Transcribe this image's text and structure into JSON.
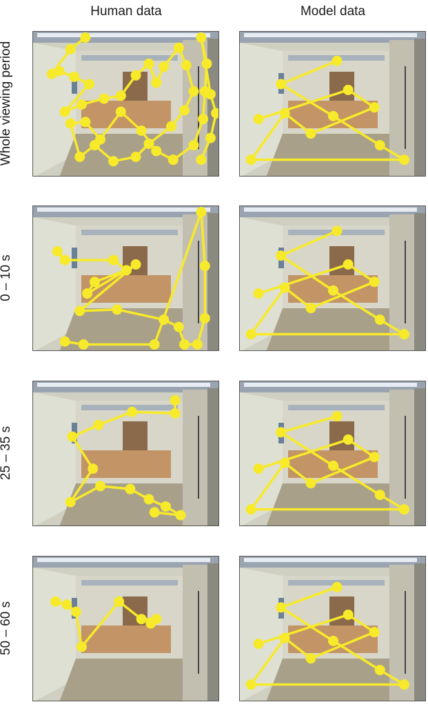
{
  "columns": [
    "Human data",
    "Model data"
  ],
  "rows": [
    "Whole viewing period",
    "0 – 10 s",
    "25 – 35 s",
    "50 – 60 s"
  ],
  "colors": {
    "scanpath": "#f7ea2a",
    "wall": "#dfe0d4",
    "floor": "#a9a08a",
    "door": "#8a6a4a",
    "desk": "#c29466"
  },
  "panels": [
    {
      "row": 0,
      "col": 0,
      "fixations": [
        [
          0.28,
          0.04
        ],
        [
          0.2,
          0.12
        ],
        [
          0.1,
          0.29
        ],
        [
          0.14,
          0.27
        ],
        [
          0.22,
          0.31
        ],
        [
          0.3,
          0.36
        ],
        [
          0.17,
          0.55
        ],
        [
          0.26,
          0.5
        ],
        [
          0.38,
          0.46
        ],
        [
          0.47,
          0.44
        ],
        [
          0.55,
          0.3
        ],
        [
          0.62,
          0.22
        ],
        [
          0.66,
          0.35
        ],
        [
          0.7,
          0.24
        ],
        [
          0.78,
          0.11
        ],
        [
          0.82,
          0.23
        ],
        [
          0.86,
          0.41
        ],
        [
          0.81,
          0.54
        ],
        [
          0.74,
          0.65
        ],
        [
          0.62,
          0.77
        ],
        [
          0.55,
          0.86
        ],
        [
          0.43,
          0.89
        ],
        [
          0.33,
          0.78
        ],
        [
          0.25,
          0.86
        ],
        [
          0.2,
          0.63
        ],
        [
          0.28,
          0.62
        ],
        [
          0.36,
          0.74
        ],
        [
          0.47,
          0.55
        ],
        [
          0.58,
          0.68
        ],
        [
          0.66,
          0.82
        ],
        [
          0.75,
          0.88
        ],
        [
          0.86,
          0.78
        ],
        [
          0.91,
          0.6
        ],
        [
          0.92,
          0.41
        ],
        [
          0.93,
          0.22
        ],
        [
          0.9,
          0.04
        ],
        [
          0.95,
          0.43
        ],
        [
          0.98,
          0.56
        ],
        [
          0.95,
          0.73
        ],
        [
          0.9,
          0.88
        ]
      ]
    },
    {
      "row": 0,
      "col": 1,
      "fixations": [
        [
          0.52,
          0.2
        ],
        [
          0.22,
          0.36
        ],
        [
          0.5,
          0.58
        ],
        [
          0.75,
          0.78
        ],
        [
          0.88,
          0.88
        ],
        [
          0.06,
          0.88
        ],
        [
          0.24,
          0.56
        ],
        [
          0.38,
          0.7
        ],
        [
          0.72,
          0.52
        ],
        [
          0.58,
          0.4
        ],
        [
          0.1,
          0.6
        ]
      ]
    },
    {
      "row": 1,
      "col": 0,
      "fixations": [
        [
          0.13,
          0.31
        ],
        [
          0.17,
          0.37
        ],
        [
          0.43,
          0.37
        ],
        [
          0.5,
          0.44
        ],
        [
          0.33,
          0.52
        ],
        [
          0.29,
          0.6
        ],
        [
          0.55,
          0.4
        ],
        [
          0.25,
          0.72
        ],
        [
          0.45,
          0.71
        ],
        [
          0.7,
          0.78
        ],
        [
          0.78,
          0.83
        ],
        [
          0.81,
          0.95
        ],
        [
          0.88,
          0.95
        ],
        [
          0.92,
          0.77
        ],
        [
          0.92,
          0.41
        ],
        [
          0.9,
          0.04
        ],
        [
          0.65,
          0.95
        ],
        [
          0.27,
          0.95
        ],
        [
          0.17,
          0.93
        ]
      ]
    },
    {
      "row": 1,
      "col": 1,
      "fixations": [
        [
          0.52,
          0.17
        ],
        [
          0.22,
          0.34
        ],
        [
          0.5,
          0.58
        ],
        [
          0.75,
          0.78
        ],
        [
          0.88,
          0.88
        ],
        [
          0.06,
          0.88
        ],
        [
          0.24,
          0.56
        ],
        [
          0.38,
          0.7
        ],
        [
          0.72,
          0.52
        ],
        [
          0.58,
          0.4
        ],
        [
          0.1,
          0.6
        ]
      ]
    },
    {
      "row": 2,
      "col": 0,
      "fixations": [
        [
          0.76,
          0.13
        ],
        [
          0.76,
          0.22
        ],
        [
          0.53,
          0.21
        ],
        [
          0.35,
          0.3
        ],
        [
          0.21,
          0.38
        ],
        [
          0.32,
          0.6
        ],
        [
          0.2,
          0.83
        ],
        [
          0.36,
          0.72
        ],
        [
          0.52,
          0.74
        ],
        [
          0.62,
          0.81
        ],
        [
          0.71,
          0.86
        ],
        [
          0.79,
          0.92
        ],
        [
          0.65,
          0.9
        ]
      ]
    },
    {
      "row": 2,
      "col": 1,
      "fixations": [
        [
          0.52,
          0.24
        ],
        [
          0.22,
          0.35
        ],
        [
          0.5,
          0.58
        ],
        [
          0.75,
          0.78
        ],
        [
          0.88,
          0.88
        ],
        [
          0.06,
          0.88
        ],
        [
          0.24,
          0.56
        ],
        [
          0.38,
          0.7
        ],
        [
          0.72,
          0.52
        ],
        [
          0.58,
          0.4
        ],
        [
          0.1,
          0.6
        ]
      ]
    },
    {
      "row": 3,
      "col": 0,
      "fixations": [
        [
          0.12,
          0.31
        ],
        [
          0.18,
          0.33
        ],
        [
          0.23,
          0.38
        ],
        [
          0.26,
          0.62
        ],
        [
          0.46,
          0.31
        ],
        [
          0.58,
          0.43
        ],
        [
          0.66,
          0.43
        ],
        [
          0.63,
          0.46
        ]
      ]
    },
    {
      "row": 3,
      "col": 1,
      "fixations": [
        [
          0.52,
          0.21
        ],
        [
          0.22,
          0.35
        ],
        [
          0.5,
          0.58
        ],
        [
          0.75,
          0.78
        ],
        [
          0.88,
          0.88
        ],
        [
          0.06,
          0.88
        ],
        [
          0.24,
          0.56
        ],
        [
          0.38,
          0.7
        ],
        [
          0.72,
          0.52
        ],
        [
          0.58,
          0.4
        ],
        [
          0.1,
          0.6
        ]
      ]
    }
  ]
}
